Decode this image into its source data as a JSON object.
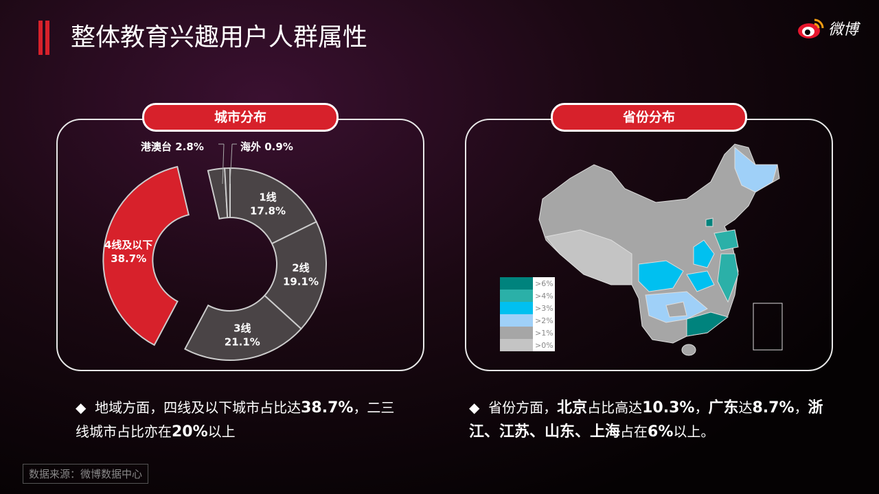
{
  "header": {
    "title": "整体教育兴趣用户人群属性",
    "logo_text": "微博",
    "accent": "#d7212b"
  },
  "city_panel": {
    "label": "城市分布"
  },
  "province_panel": {
    "label": "省份分布"
  },
  "chart_data": [
    {
      "type": "pie",
      "donut": true,
      "slices": [
        {
          "label": "1线",
          "value": 17.8,
          "value_label": "17.8%",
          "color": "#4a4446"
        },
        {
          "label": "2线",
          "value": 19.1,
          "value_label": "19.1%",
          "color": "#4a4446"
        },
        {
          "label": "3线",
          "value": 21.1,
          "value_label": "21.1%",
          "color": "#4a4446"
        },
        {
          "label": "4线及以下",
          "value": 38.7,
          "value_label": "38.7%",
          "color": "#d7212b",
          "exploded": true
        },
        {
          "label": "港澳台",
          "value": 2.8,
          "value_label": "2.8%",
          "color": "#4a4446"
        },
        {
          "label": "海外",
          "value": 0.9,
          "value_label": "0.9%",
          "color": "#4a4446"
        }
      ]
    },
    {
      "type": "choropleth-map",
      "legend": [
        {
          "label": ">6%",
          "color": "#00837d"
        },
        {
          "label": ">4%",
          "color": "#2bb0a8"
        },
        {
          "label": ">3%",
          "color": "#00c0f0"
        },
        {
          "label": ">2%",
          "color": "#9fd0f8"
        },
        {
          "label": ">1%",
          "color": "#a6a6a6"
        },
        {
          "label": ">0%",
          "color": "#c4c4c4"
        }
      ]
    }
  ],
  "notes": {
    "left": {
      "bullet": "◆",
      "t1": "地域方面，四线及以下城市占比达",
      "b1": "38.7%",
      "t2": "，二三线城市占比亦在",
      "b2": "20%",
      "t3": "以上"
    },
    "right": {
      "bullet": "◆",
      "t1": "省份方面，",
      "b1": "北京",
      "t2": "占比高达",
      "b2": "10.3%",
      "t3": "，",
      "b3": "广东",
      "t4": "达",
      "b4": "8.7%",
      "t5": "，",
      "b5": "浙江、江苏、山东、上海",
      "t6": "占在",
      "b6": "6%",
      "t7": "以上。"
    }
  },
  "source": "数据来源：微博数据中心"
}
